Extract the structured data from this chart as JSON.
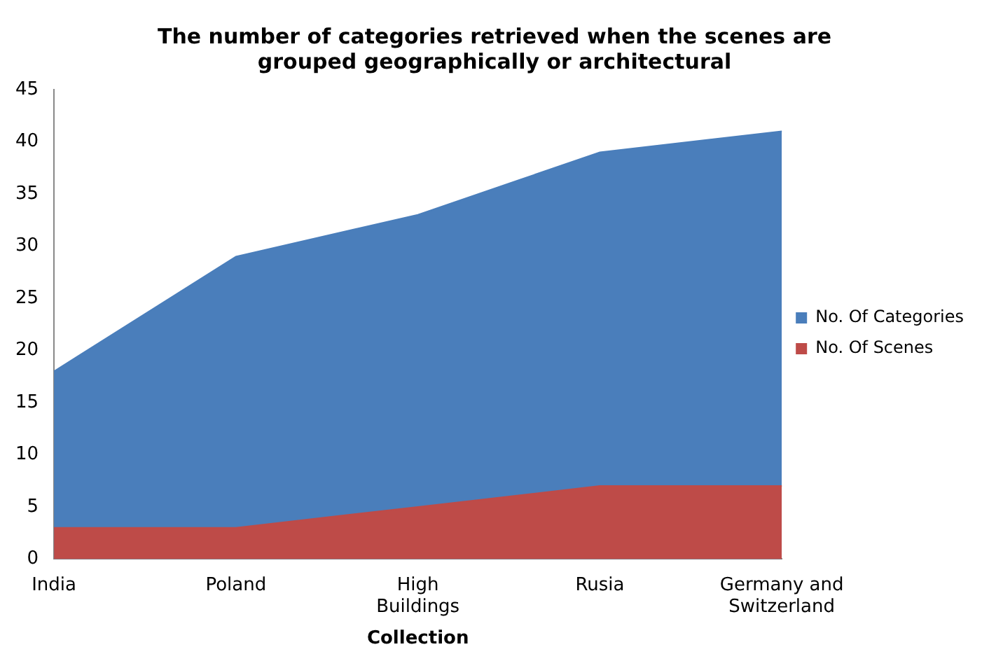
{
  "chart_data": {
    "type": "area",
    "title": "The number of categories retrieved when the scenes are grouped geographically or architectural",
    "xlabel": "Collection",
    "categories": [
      "India",
      "Poland",
      "High Buildings",
      "Rusia",
      "Germany and Switzerland"
    ],
    "series": [
      {
        "name": "No. Of Categories",
        "color": "#4a7ebb",
        "values": [
          18,
          29,
          33,
          39,
          41
        ]
      },
      {
        "name": "No. Of Scenes",
        "color": "#be4b48",
        "values": [
          3,
          3,
          5,
          7,
          7
        ]
      }
    ],
    "ylim": [
      0,
      45
    ],
    "yticks": [
      0,
      5,
      10,
      15,
      20,
      25,
      30,
      35,
      40,
      45
    ],
    "grid": false,
    "legend": "right"
  }
}
